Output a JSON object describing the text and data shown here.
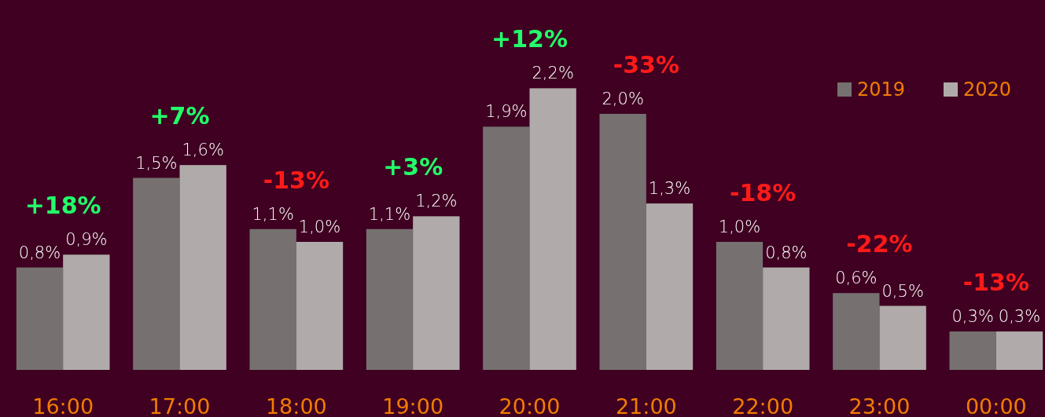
{
  "chart_data": {
    "type": "bar",
    "categories": [
      "16:00",
      "17:00",
      "18:00",
      "19:00",
      "20:00",
      "21:00",
      "22:00",
      "23:00",
      "00:00"
    ],
    "series": [
      {
        "name": "2019",
        "color": "#767170",
        "values": [
          0.8,
          1.5,
          1.1,
          1.1,
          1.9,
          2.0,
          1.0,
          0.6,
          0.3
        ],
        "value_labels": [
          "0,8%",
          "1,5%",
          "1,1%",
          "1,1%",
          "1,9%",
          "2,0%",
          "1,0%",
          "0,6%",
          "0,3%"
        ]
      },
      {
        "name": "2020",
        "color": "#b0abaa",
        "values": [
          0.9,
          1.6,
          1.0,
          1.2,
          2.2,
          1.3,
          0.8,
          0.5,
          0.3
        ],
        "value_labels": [
          "0,9%",
          "1,6%",
          "1,0%",
          "1,2%",
          "2,2%",
          "1,3%",
          "0,8%",
          "0,5%",
          "0,3%"
        ]
      }
    ],
    "annotations": [
      "+18%",
      "+7%",
      "-13%",
      "+3%",
      "+12%",
      "-33%",
      "-18%",
      "-22%",
      "-13%"
    ],
    "legend": "top right"
  }
}
